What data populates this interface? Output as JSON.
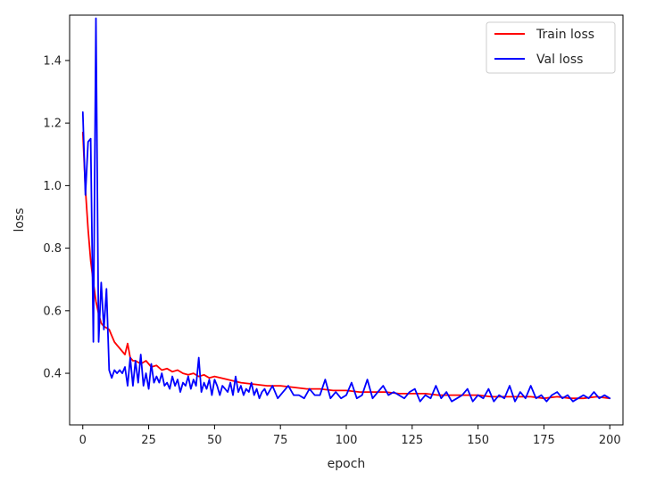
{
  "chart_data": {
    "type": "line",
    "xlabel": "epoch",
    "ylabel": "loss",
    "xlim": [
      -5,
      205
    ],
    "ylim": [
      0.235,
      1.545
    ],
    "x_ticks": [
      0,
      25,
      50,
      75,
      100,
      125,
      150,
      175,
      200
    ],
    "y_ticks": [
      0.4,
      0.6,
      0.8,
      1.0,
      1.2,
      1.4
    ],
    "x_tick_labels": [
      "0",
      "25",
      "50",
      "75",
      "100",
      "125",
      "150",
      "175",
      "200"
    ],
    "y_tick_labels": [
      "0.4",
      "0.6",
      "0.8",
      "1.0",
      "1.2",
      "1.4"
    ],
    "grid": false,
    "legend_position": "top-right",
    "series": [
      {
        "name": "Train loss",
        "color": "#ff0000",
        "x": [
          0,
          1,
          2,
          3,
          4,
          5,
          6,
          7,
          8,
          9,
          10,
          11,
          12,
          13,
          14,
          15,
          16,
          17,
          18,
          19,
          20,
          22,
          24,
          26,
          28,
          30,
          32,
          34,
          36,
          38,
          40,
          42,
          44,
          46,
          48,
          50,
          55,
          60,
          65,
          70,
          75,
          80,
          85,
          90,
          95,
          100,
          105,
          110,
          115,
          120,
          125,
          130,
          135,
          140,
          145,
          150,
          155,
          160,
          165,
          170,
          175,
          180,
          185,
          190,
          195,
          200
        ],
        "y": [
          1.17,
          0.99,
          0.86,
          0.76,
          0.69,
          0.63,
          0.59,
          0.56,
          0.55,
          0.545,
          0.54,
          0.52,
          0.5,
          0.49,
          0.48,
          0.47,
          0.46,
          0.495,
          0.45,
          0.44,
          0.44,
          0.43,
          0.44,
          0.42,
          0.425,
          0.41,
          0.415,
          0.405,
          0.41,
          0.4,
          0.395,
          0.4,
          0.39,
          0.395,
          0.385,
          0.39,
          0.38,
          0.37,
          0.365,
          0.36,
          0.36,
          0.355,
          0.35,
          0.35,
          0.345,
          0.345,
          0.34,
          0.34,
          0.34,
          0.335,
          0.335,
          0.335,
          0.33,
          0.33,
          0.33,
          0.33,
          0.325,
          0.325,
          0.325,
          0.325,
          0.32,
          0.325,
          0.32,
          0.32,
          0.325,
          0.32
        ]
      },
      {
        "name": "Val loss",
        "color": "#0000ff",
        "x": [
          0,
          1,
          2,
          3,
          4,
          5,
          6,
          7,
          8,
          9,
          10,
          11,
          12,
          13,
          14,
          15,
          16,
          17,
          18,
          19,
          20,
          21,
          22,
          23,
          24,
          25,
          26,
          27,
          28,
          29,
          30,
          31,
          32,
          33,
          34,
          35,
          36,
          37,
          38,
          39,
          40,
          41,
          42,
          43,
          44,
          45,
          46,
          47,
          48,
          49,
          50,
          51,
          52,
          53,
          54,
          55,
          56,
          57,
          58,
          59,
          60,
          61,
          62,
          63,
          64,
          65,
          66,
          67,
          68,
          69,
          70,
          72,
          74,
          76,
          78,
          80,
          82,
          84,
          86,
          88,
          90,
          92,
          94,
          96,
          98,
          100,
          102,
          104,
          106,
          108,
          110,
          112,
          114,
          116,
          118,
          120,
          122,
          124,
          126,
          128,
          130,
          132,
          134,
          136,
          138,
          140,
          142,
          144,
          146,
          148,
          150,
          152,
          154,
          156,
          158,
          160,
          162,
          164,
          166,
          168,
          170,
          172,
          174,
          176,
          178,
          180,
          182,
          184,
          186,
          188,
          190,
          192,
          194,
          196,
          198,
          200
        ],
        "y": [
          1.235,
          0.97,
          1.14,
          1.15,
          0.5,
          1.535,
          0.5,
          0.69,
          0.54,
          0.67,
          0.41,
          0.385,
          0.41,
          0.4,
          0.41,
          0.4,
          0.42,
          0.36,
          0.45,
          0.36,
          0.44,
          0.37,
          0.46,
          0.36,
          0.4,
          0.35,
          0.43,
          0.37,
          0.39,
          0.37,
          0.4,
          0.36,
          0.37,
          0.35,
          0.39,
          0.36,
          0.38,
          0.34,
          0.37,
          0.36,
          0.39,
          0.35,
          0.38,
          0.36,
          0.45,
          0.34,
          0.37,
          0.35,
          0.38,
          0.33,
          0.38,
          0.36,
          0.33,
          0.36,
          0.35,
          0.34,
          0.37,
          0.33,
          0.39,
          0.34,
          0.36,
          0.33,
          0.35,
          0.34,
          0.37,
          0.33,
          0.35,
          0.32,
          0.34,
          0.35,
          0.33,
          0.36,
          0.32,
          0.34,
          0.36,
          0.33,
          0.33,
          0.32,
          0.35,
          0.33,
          0.33,
          0.38,
          0.32,
          0.34,
          0.32,
          0.33,
          0.37,
          0.32,
          0.33,
          0.38,
          0.32,
          0.34,
          0.36,
          0.33,
          0.34,
          0.33,
          0.32,
          0.34,
          0.35,
          0.31,
          0.33,
          0.32,
          0.36,
          0.32,
          0.34,
          0.31,
          0.32,
          0.33,
          0.35,
          0.31,
          0.33,
          0.32,
          0.35,
          0.31,
          0.33,
          0.32,
          0.36,
          0.31,
          0.34,
          0.32,
          0.36,
          0.32,
          0.33,
          0.31,
          0.33,
          0.34,
          0.32,
          0.33,
          0.31,
          0.32,
          0.33,
          0.32,
          0.34,
          0.32,
          0.33,
          0.32
        ]
      }
    ]
  }
}
